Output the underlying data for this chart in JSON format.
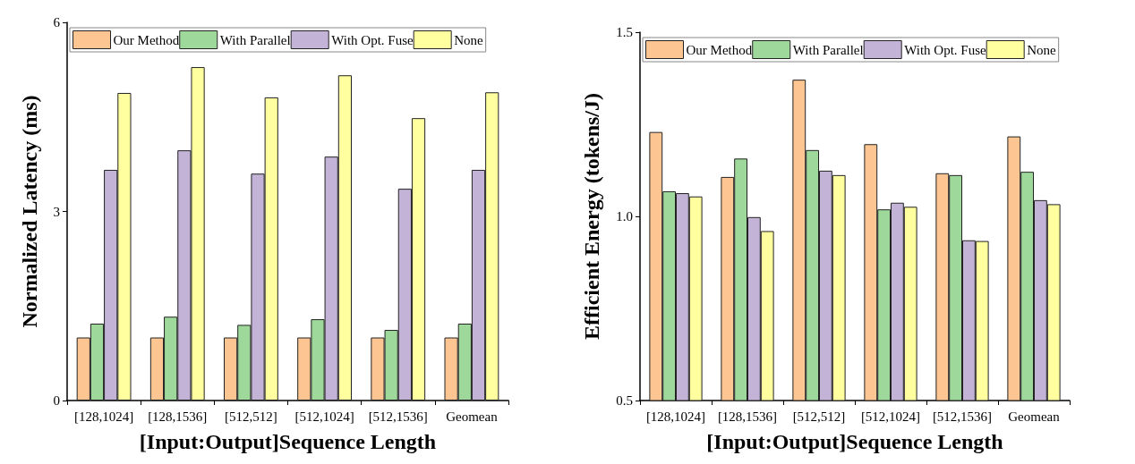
{
  "chart_data": [
    {
      "type": "bar",
      "xlabel": "[Input:Output]Sequence Length",
      "ylabel": "Normalized Latency (ms)",
      "categories": [
        "[128,1024]",
        "[128,1536]",
        "[512,512]",
        "[512,1024]",
        "[512,1536]",
        "Geomean"
      ],
      "series": [
        {
          "name": "Our Method",
          "color": "#fdc591",
          "values": [
            1.0,
            1.0,
            1.0,
            1.0,
            1.0,
            1.0
          ]
        },
        {
          "name": "With Parallel",
          "color": "#9ed89a",
          "values": [
            1.22,
            1.33,
            1.2,
            1.29,
            1.12,
            1.22
          ]
        },
        {
          "name": "With Opt. Fuse",
          "color": "#c3b3d6",
          "values": [
            3.66,
            3.97,
            3.6,
            3.87,
            3.36,
            3.66
          ]
        },
        {
          "name": "None",
          "color": "#ffff9f",
          "values": [
            4.88,
            5.29,
            4.81,
            5.16,
            4.48,
            4.89
          ]
        }
      ],
      "ylim": [
        0,
        6
      ],
      "yticks": [
        0,
        3,
        6
      ],
      "grid": false,
      "legend": "top"
    },
    {
      "type": "bar",
      "xlabel": "[Input:Output]Sequence Length",
      "ylabel": "Efficient Energy (tokens/J)",
      "categories": [
        "[128,1024]",
        "[128,1536]",
        "[512,512]",
        "[512,1024]",
        "[512,1536]",
        "Geomean"
      ],
      "series": [
        {
          "name": "Our Method",
          "color": "#fdc591",
          "values": [
            1.229,
            1.107,
            1.371,
            1.196,
            1.117,
            1.217
          ]
        },
        {
          "name": "With Parallel",
          "color": "#9ed89a",
          "values": [
            1.068,
            1.157,
            1.18,
            1.019,
            1.112,
            1.121
          ]
        },
        {
          "name": "With Opt. Fuse",
          "color": "#c3b3d6",
          "values": [
            1.063,
            0.998,
            1.124,
            1.037,
            0.935,
            1.044
          ]
        },
        {
          "name": "None",
          "color": "#ffff9f",
          "values": [
            1.054,
            0.96,
            1.112,
            1.026,
            0.933,
            1.033
          ]
        }
      ],
      "ylim": [
        0.5,
        1.5
      ],
      "yticks": [
        {
          "value": 0.5,
          "label": "0.5"
        },
        {
          "value": 1,
          "label": "1.0"
        },
        {
          "value": 1.5,
          "label": "1.5"
        }
      ],
      "grid": false,
      "legend": "top"
    }
  ]
}
